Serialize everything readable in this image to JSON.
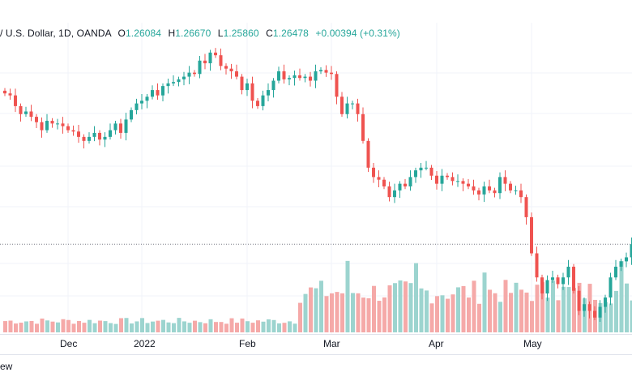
{
  "legend": {
    "symbol": "/ U.S. Dollar, 1D, OANDA",
    "o_key": "O",
    "o_val": "1.26084",
    "h_key": "H",
    "h_val": "1.26670",
    "l_key": "L",
    "l_val": "1.25860",
    "c_key": "C",
    "c_val": "1.26478",
    "change": "+0.00394 (+0.31%)"
  },
  "footer_text": "ew",
  "colors": {
    "up": "#26a69a",
    "down": "#ef5350",
    "up_vol": "#9cd4cf",
    "down_vol": "#f5a9a8",
    "grid": "#f0f3fa",
    "text": "#131722"
  },
  "chart_data": {
    "type": "candlestick",
    "x_tick_labels": [
      "Dec",
      "2022",
      "Feb",
      "Mar",
      "Apr",
      "May"
    ],
    "x_tick_index": [
      12,
      26,
      46,
      62,
      82,
      100
    ],
    "last_price_line": 1.26478,
    "closes": [
      1.3775,
      1.376,
      1.368,
      1.362,
      1.364,
      1.36,
      1.356,
      1.35,
      1.357,
      1.355,
      1.355,
      1.353,
      1.35,
      1.349,
      1.345,
      1.342,
      1.345,
      1.348,
      1.343,
      1.345,
      1.35,
      1.355,
      1.348,
      1.358,
      1.365,
      1.37,
      1.372,
      1.375,
      1.38,
      1.376,
      1.383,
      1.385,
      1.386,
      1.388,
      1.39,
      1.393,
      1.392,
      1.402,
      1.4,
      1.408,
      1.406,
      1.398,
      1.396,
      1.394,
      1.39,
      1.38,
      1.385,
      1.372,
      1.368,
      1.376,
      1.38,
      1.387,
      1.394,
      1.388,
      1.389,
      1.391,
      1.389,
      1.39,
      1.387,
      1.394,
      1.395,
      1.393,
      1.392,
      1.375,
      1.362,
      1.37,
      1.37,
      1.362,
      1.342,
      1.322,
      1.315,
      1.313,
      1.308,
      1.3,
      1.305,
      1.31,
      1.308,
      1.315,
      1.32,
      1.322,
      1.322,
      1.316,
      1.31,
      1.316,
      1.315,
      1.312,
      1.312,
      1.31,
      1.308,
      1.305,
      1.302,
      1.308,
      1.305,
      1.303,
      1.315,
      1.31,
      1.305,
      1.305,
      1.3,
      1.285,
      1.258,
      1.24,
      1.228,
      1.238,
      1.24,
      1.235,
      1.24,
      1.248,
      1.23,
      1.215,
      1.22,
      1.215,
      1.21,
      1.218,
      1.225,
      1.24,
      1.248,
      1.252,
      1.255,
      1.26478
    ],
    "volume_note": "volume bars shown beneath price, up/down colored"
  }
}
